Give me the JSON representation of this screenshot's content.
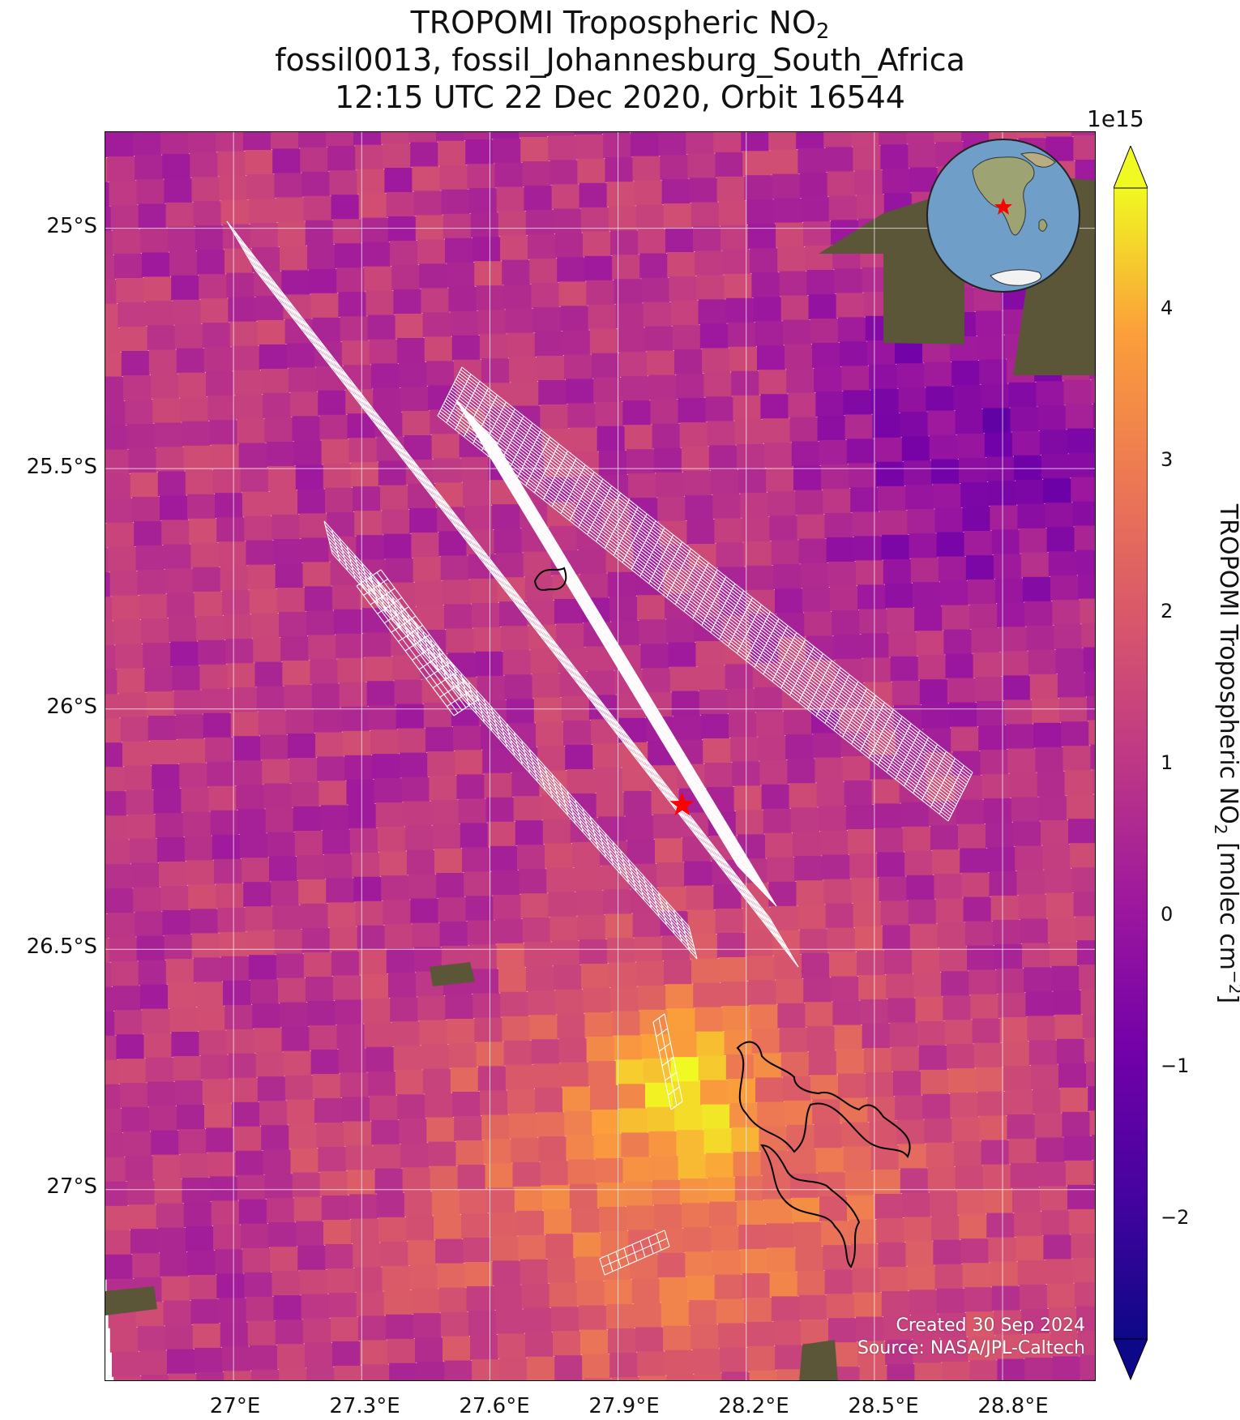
{
  "title": {
    "line1_prefix": "TROPOMI Tropospheric NO",
    "line1_sub": "2",
    "line2": "fossil0013, fossil_Johannesburg_South_Africa",
    "line3": "12:15 UTC 22 Dec 2020, Orbit 16544"
  },
  "map": {
    "lat_ticks": [
      "25°S",
      "25.5°S",
      "26°S",
      "26.5°S",
      "27°S"
    ],
    "lon_ticks": [
      "27°E",
      "27.3°E",
      "27.6°E",
      "27.9°E",
      "28.2°E",
      "28.5°E",
      "28.8°E"
    ],
    "extent": {
      "lon_min": 26.7,
      "lon_max": 29.02,
      "lat_min": -27.4,
      "lat_max": -24.8
    },
    "target_marker": {
      "lon": 28.05,
      "lat": -26.2,
      "color": "#ff0000",
      "icon": "star-icon"
    },
    "grid_color": "#ffffff",
    "footprint_color": "#ffffff",
    "outline_color": "#000000",
    "credit_line1": "Created 30 Sep 2024",
    "credit_line2": "Source: NASA/JPL-Caltech"
  },
  "colorbar": {
    "colormap": "plasma",
    "min": -2.8,
    "max": 4.8,
    "extend": "both",
    "exponent": "1e15",
    "ticks": [
      "−2",
      "−1",
      "0",
      "1",
      "2",
      "3",
      "4"
    ],
    "label_prefix": "TROPOMI Tropospheric NO",
    "label_sub": "2",
    "label_mid": " [molec cm",
    "label_sup": "−2",
    "label_suffix": "]"
  },
  "inset": {
    "icon": "globe-icon",
    "marker": "star-icon",
    "ocean_color": "#6f9fc9",
    "land_color": "#8f9a6a"
  }
}
